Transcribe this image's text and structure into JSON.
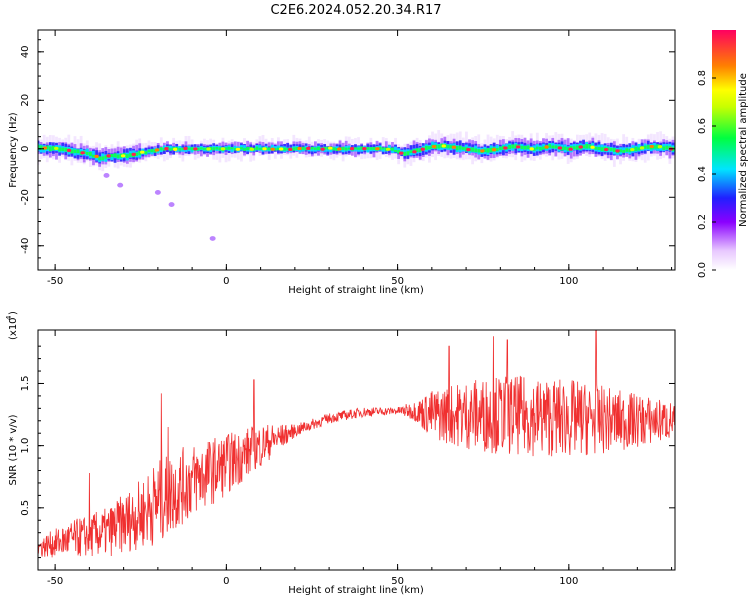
{
  "title": "C2E6.2024.052.20.34.R17",
  "colors": {
    "snr_line": "#f03030",
    "axis": "#000000"
  },
  "chart_data": [
    {
      "type": "heatmap",
      "xlabel": "Height of straight line (km)",
      "ylabel": "Frequency (Hz)",
      "xlim": [
        -55,
        131
      ],
      "ylim": [
        -50,
        49
      ],
      "xticks": [
        -50,
        0,
        50,
        100
      ],
      "yticks": [
        -40,
        -20,
        0,
        20,
        40
      ],
      "colorbar": {
        "label": "Normalized spectral amplitude",
        "range": [
          0,
          1
        ],
        "ticks": [
          "0.0",
          "0.2",
          "0.4",
          "0.6",
          "0.8"
        ],
        "colormap": [
          "#ffffff",
          "#8a00ff",
          "#1a1aff",
          "#00e5ff",
          "#00ff40",
          "#c8ff00",
          "#ffff00",
          "#ff8000",
          "#ff0060"
        ]
      },
      "ridge": [
        {
          "x": -55,
          "f": 0.5
        },
        {
          "x": -50,
          "f": 0
        },
        {
          "x": -45,
          "f": -1
        },
        {
          "x": -40,
          "f": -2
        },
        {
          "x": -37,
          "f": -4
        },
        {
          "x": -34,
          "f": -3
        },
        {
          "x": -30,
          "f": -3
        },
        {
          "x": -26,
          "f": -2
        },
        {
          "x": -22,
          "f": -1
        },
        {
          "x": -18,
          "f": 0
        },
        {
          "x": -10,
          "f": 0
        },
        {
          "x": 0,
          "f": 0
        },
        {
          "x": 10,
          "f": 0
        },
        {
          "x": 20,
          "f": 0
        },
        {
          "x": 30,
          "f": 0
        },
        {
          "x": 40,
          "f": 0
        },
        {
          "x": 48,
          "f": 0
        },
        {
          "x": 52,
          "f": -2
        },
        {
          "x": 55,
          "f": -1
        },
        {
          "x": 60,
          "f": 1
        },
        {
          "x": 65,
          "f": 1
        },
        {
          "x": 70,
          "f": 0
        },
        {
          "x": 75,
          "f": -1
        },
        {
          "x": 80,
          "f": 0
        },
        {
          "x": 85,
          "f": 1
        },
        {
          "x": 90,
          "f": 0
        },
        {
          "x": 95,
          "f": 1
        },
        {
          "x": 100,
          "f": 0
        },
        {
          "x": 105,
          "f": 1
        },
        {
          "x": 110,
          "f": 0
        },
        {
          "x": 115,
          "f": -1
        },
        {
          "x": 120,
          "f": 0
        },
        {
          "x": 125,
          "f": 1
        },
        {
          "x": 131,
          "f": 0
        }
      ],
      "outliers": [
        {
          "x": -35,
          "f": -11
        },
        {
          "x": -31,
          "f": -15
        },
        {
          "x": -20,
          "f": -18
        },
        {
          "x": -16,
          "f": -23
        },
        {
          "x": -4,
          "f": -37
        }
      ]
    },
    {
      "type": "line",
      "xlabel": "Height of straight line (km)",
      "ylabel": "SNR (10 * v/v)",
      "multiplier_label": "(x10",
      "multiplier_exp": "4",
      "xlim": [
        -55,
        131
      ],
      "ylim": [
        0,
        1.93
      ],
      "xticks": [
        -50,
        0,
        50,
        100
      ],
      "yticks": [
        "0.5",
        "1.0",
        "1.5"
      ],
      "envelope": [
        {
          "x": -55,
          "mean": 0.18,
          "amp": 0.08
        },
        {
          "x": -45,
          "mean": 0.25,
          "amp": 0.15
        },
        {
          "x": -35,
          "mean": 0.3,
          "amp": 0.2
        },
        {
          "x": -25,
          "mean": 0.45,
          "amp": 0.28
        },
        {
          "x": -20,
          "mean": 0.55,
          "amp": 0.35
        },
        {
          "x": -10,
          "mean": 0.72,
          "amp": 0.3
        },
        {
          "x": 0,
          "mean": 0.85,
          "amp": 0.25
        },
        {
          "x": 10,
          "mean": 1.0,
          "amp": 0.18
        },
        {
          "x": 20,
          "mean": 1.12,
          "amp": 0.05
        },
        {
          "x": 30,
          "mean": 1.22,
          "amp": 0.04
        },
        {
          "x": 40,
          "mean": 1.27,
          "amp": 0.04
        },
        {
          "x": 50,
          "mean": 1.28,
          "amp": 0.03
        },
        {
          "x": 55,
          "mean": 1.28,
          "amp": 0.08
        },
        {
          "x": 60,
          "mean": 1.25,
          "amp": 0.2
        },
        {
          "x": 70,
          "mean": 1.25,
          "amp": 0.28
        },
        {
          "x": 80,
          "mean": 1.25,
          "amp": 0.32
        },
        {
          "x": 100,
          "mean": 1.22,
          "amp": 0.32
        },
        {
          "x": 115,
          "mean": 1.2,
          "amp": 0.25
        },
        {
          "x": 131,
          "mean": 1.2,
          "amp": 0.15
        }
      ],
      "peaks": [
        {
          "x": -40,
          "y": 0.78
        },
        {
          "x": -19,
          "y": 1.42
        },
        {
          "x": -17,
          "y": 1.15
        },
        {
          "x": 8,
          "y": 1.53
        },
        {
          "x": 65,
          "y": 1.8
        },
        {
          "x": 78,
          "y": 1.88
        },
        {
          "x": 82,
          "y": 1.85
        },
        {
          "x": 108,
          "y": 1.95
        }
      ]
    }
  ]
}
